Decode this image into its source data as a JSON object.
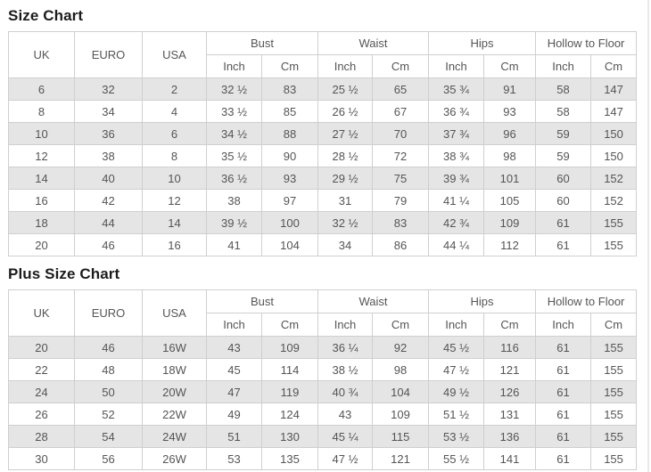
{
  "colors": {
    "row_shade": "#e5e5e5",
    "border": "#cfcfcf",
    "text": "#555555",
    "title_text": "#1c1c1c"
  },
  "table_header": {
    "simple": [
      "UK",
      "EURO",
      "USA"
    ],
    "groups": [
      "Bust",
      "Waist",
      "Hips",
      "Hollow to Floor"
    ],
    "subs": [
      "Inch",
      "Cm"
    ]
  },
  "chart_data": [
    {
      "type": "table",
      "title": "Size Chart",
      "columns": [
        "UK",
        "EURO",
        "USA",
        "Bust Inch",
        "Bust Cm",
        "Waist Inch",
        "Waist Cm",
        "Hips Inch",
        "Hips Cm",
        "Hollow to Floor Inch",
        "Hollow to Floor Cm"
      ],
      "rows": [
        [
          "6",
          "32",
          "2",
          "32 ½",
          "83",
          "25 ½",
          "65",
          "35 ¾",
          "91",
          "58",
          "147"
        ],
        [
          "8",
          "34",
          "4",
          "33 ½",
          "85",
          "26 ½",
          "67",
          "36 ¾",
          "93",
          "58",
          "147"
        ],
        [
          "10",
          "36",
          "6",
          "34 ½",
          "88",
          "27 ½",
          "70",
          "37 ¾",
          "96",
          "59",
          "150"
        ],
        [
          "12",
          "38",
          "8",
          "35 ½",
          "90",
          "28 ½",
          "72",
          "38 ¾",
          "98",
          "59",
          "150"
        ],
        [
          "14",
          "40",
          "10",
          "36 ½",
          "93",
          "29 ½",
          "75",
          "39 ¾",
          "101",
          "60",
          "152"
        ],
        [
          "16",
          "42",
          "12",
          "38",
          "97",
          "31",
          "79",
          "41 ¼",
          "105",
          "60",
          "152"
        ],
        [
          "18",
          "44",
          "14",
          "39 ½",
          "100",
          "32 ½",
          "83",
          "42 ¾",
          "109",
          "61",
          "155"
        ],
        [
          "20",
          "46",
          "16",
          "41",
          "104",
          "34",
          "86",
          "44 ¼",
          "112",
          "61",
          "155"
        ]
      ]
    },
    {
      "type": "table",
      "title": "Plus Size Chart",
      "columns": [
        "UK",
        "EURO",
        "USA",
        "Bust Inch",
        "Bust Cm",
        "Waist Inch",
        "Waist Cm",
        "Hips Inch",
        "Hips Cm",
        "Hollow to Floor Inch",
        "Hollow to Floor Cm"
      ],
      "rows": [
        [
          "20",
          "46",
          "16W",
          "43",
          "109",
          "36 ¼",
          "92",
          "45 ½",
          "116",
          "61",
          "155"
        ],
        [
          "22",
          "48",
          "18W",
          "45",
          "114",
          "38 ½",
          "98",
          "47 ½",
          "121",
          "61",
          "155"
        ],
        [
          "24",
          "50",
          "20W",
          "47",
          "119",
          "40 ¾",
          "104",
          "49 ½",
          "126",
          "61",
          "155"
        ],
        [
          "26",
          "52",
          "22W",
          "49",
          "124",
          "43",
          "109",
          "51 ½",
          "131",
          "61",
          "155"
        ],
        [
          "28",
          "54",
          "24W",
          "51",
          "130",
          "45 ¼",
          "115",
          "53 ½",
          "136",
          "61",
          "155"
        ],
        [
          "30",
          "56",
          "26W",
          "53",
          "135",
          "47 ½",
          "121",
          "55 ½",
          "141",
          "61",
          "155"
        ]
      ]
    }
  ]
}
